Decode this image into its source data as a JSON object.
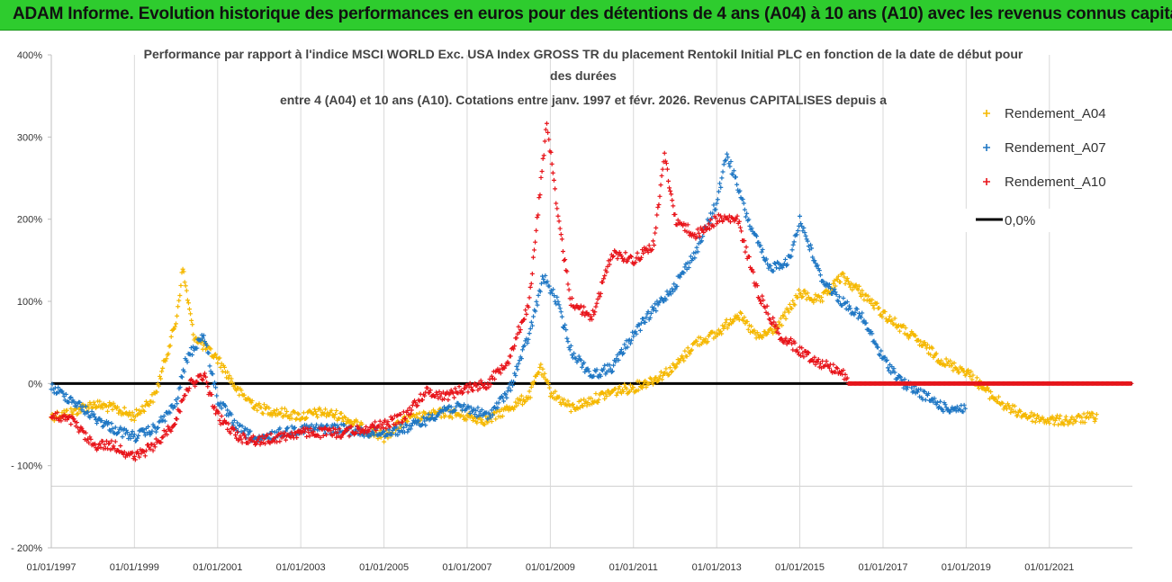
{
  "header": {
    "title": "ADAM Informe. Evolution historique des performances en euros pour des détentions de 4 ans (A04) à 10 ans (A10) avec les revenus connus capitalisés"
  },
  "chart_data": {
    "type": "scatter",
    "title_lines": [
      "Performance par rapport à l'indice MSCI WORLD Exc. USA Index GROSS TR  du placement Rentokil Initial PLC en fonction de la date de début pour",
      "des durées",
      "entre 4 (A04) et 10 ans (A10). Cotations entre janv. 1997 et févr. 2026. Revenus CAPITALISES depuis a"
    ],
    "xlabel": "",
    "ylabel": "",
    "x_tick_labels": [
      "01/01/1997",
      "01/01/1999",
      "01/01/2001",
      "01/01/2003",
      "01/01/2005",
      "01/01/2007",
      "01/01/2009",
      "01/01/2011",
      "01/01/2013",
      "01/01/2015",
      "01/01/2017",
      "01/01/2019",
      "01/01/2021"
    ],
    "xlim": [
      "1997-01-01",
      "2022-12-31"
    ],
    "y_tick_labels": [
      "400%",
      "300%",
      "200%",
      "100%",
      "0%",
      "- 100%",
      "- 200%"
    ],
    "ylim": [
      -200,
      400
    ],
    "grid": "vertical",
    "legend_position": "top-right",
    "reference_line": {
      "name": "0,0%",
      "value": 0,
      "color": "#000000"
    },
    "series": [
      {
        "name": "Rendement_A04",
        "color": "#f5b800",
        "points": [
          [
            "1997-01-01",
            -40
          ],
          [
            "1997-07-01",
            -35
          ],
          [
            "1998-01-01",
            -25
          ],
          [
            "1998-07-01",
            -30
          ],
          [
            "1999-01-01",
            -40
          ],
          [
            "1999-07-01",
            -15
          ],
          [
            "1999-10-01",
            30
          ],
          [
            "2000-01-01",
            75
          ],
          [
            "2000-03-01",
            140
          ],
          [
            "2000-06-01",
            60
          ],
          [
            "2000-09-01",
            45
          ],
          [
            "2001-01-01",
            30
          ],
          [
            "2001-07-01",
            -10
          ],
          [
            "2002-01-01",
            -30
          ],
          [
            "2002-07-01",
            -35
          ],
          [
            "2003-01-01",
            -40
          ],
          [
            "2003-07-01",
            -35
          ],
          [
            "2004-01-01",
            -40
          ],
          [
            "2004-07-01",
            -55
          ],
          [
            "2005-01-01",
            -65
          ],
          [
            "2005-07-01",
            -45
          ],
          [
            "2006-01-01",
            -40
          ],
          [
            "2006-07-01",
            -35
          ],
          [
            "2007-01-01",
            -40
          ],
          [
            "2007-07-01",
            -45
          ],
          [
            "2008-01-01",
            -30
          ],
          [
            "2008-07-01",
            -15
          ],
          [
            "2008-10-01",
            20
          ],
          [
            "2009-01-01",
            -10
          ],
          [
            "2009-07-01",
            -30
          ],
          [
            "2010-01-01",
            -20
          ],
          [
            "2010-07-01",
            -10
          ],
          [
            "2011-01-01",
            -5
          ],
          [
            "2011-07-01",
            5
          ],
          [
            "2012-01-01",
            20
          ],
          [
            "2012-07-01",
            50
          ],
          [
            "2013-01-01",
            60
          ],
          [
            "2013-07-01",
            85
          ],
          [
            "2014-01-01",
            55
          ],
          [
            "2014-07-01",
            70
          ],
          [
            "2015-01-01",
            110
          ],
          [
            "2015-07-01",
            100
          ],
          [
            "2016-01-01",
            130
          ],
          [
            "2016-07-01",
            110
          ],
          [
            "2017-01-01",
            85
          ],
          [
            "2017-07-01",
            65
          ],
          [
            "2018-01-01",
            45
          ],
          [
            "2018-07-01",
            25
          ],
          [
            "2019-01-01",
            15
          ],
          [
            "2019-07-01",
            -10
          ],
          [
            "2020-01-01",
            -30
          ],
          [
            "2020-07-01",
            -40
          ],
          [
            "2021-01-01",
            -45
          ],
          [
            "2021-07-01",
            -45
          ],
          [
            "2022-03-01",
            -40
          ]
        ]
      },
      {
        "name": "Rendement_A07",
        "color": "#1f77c4",
        "points": [
          [
            "1997-01-01",
            -5
          ],
          [
            "1997-07-01",
            -20
          ],
          [
            "1998-01-01",
            -40
          ],
          [
            "1998-07-01",
            -55
          ],
          [
            "1999-01-01",
            -65
          ],
          [
            "1999-07-01",
            -55
          ],
          [
            "2000-01-01",
            -25
          ],
          [
            "2000-04-01",
            30
          ],
          [
            "2000-09-01",
            60
          ],
          [
            "2001-01-01",
            -20
          ],
          [
            "2001-07-01",
            -55
          ],
          [
            "2002-01-01",
            -70
          ],
          [
            "2002-07-01",
            -60
          ],
          [
            "2003-01-01",
            -55
          ],
          [
            "2003-07-01",
            -55
          ],
          [
            "2004-01-01",
            -55
          ],
          [
            "2004-07-01",
            -60
          ],
          [
            "2005-01-01",
            -60
          ],
          [
            "2005-07-01",
            -55
          ],
          [
            "2006-01-01",
            -45
          ],
          [
            "2006-07-01",
            -30
          ],
          [
            "2007-01-01",
            -30
          ],
          [
            "2007-07-01",
            -40
          ],
          [
            "2008-01-01",
            -10
          ],
          [
            "2008-07-01",
            60
          ],
          [
            "2008-11-01",
            130
          ],
          [
            "2009-03-01",
            100
          ],
          [
            "2009-07-01",
            40
          ],
          [
            "2010-01-01",
            10
          ],
          [
            "2010-07-01",
            20
          ],
          [
            "2011-01-01",
            60
          ],
          [
            "2011-07-01",
            90
          ],
          [
            "2012-01-01",
            120
          ],
          [
            "2012-07-01",
            160
          ],
          [
            "2013-01-01",
            220
          ],
          [
            "2013-04-01",
            280
          ],
          [
            "2013-10-01",
            200
          ],
          [
            "2014-04-01",
            140
          ],
          [
            "2014-10-01",
            150
          ],
          [
            "2015-01-01",
            200
          ],
          [
            "2015-07-01",
            130
          ],
          [
            "2016-01-01",
            100
          ],
          [
            "2016-07-01",
            80
          ],
          [
            "2017-01-01",
            30
          ],
          [
            "2017-07-01",
            0
          ],
          [
            "2018-01-01",
            -15
          ],
          [
            "2018-07-01",
            -30
          ],
          [
            "2019-01-01",
            -30
          ]
        ]
      },
      {
        "name": "Rendement_A10",
        "color": "#e8151b",
        "points": [
          [
            "1997-01-01",
            -40
          ],
          [
            "1997-07-01",
            -45
          ],
          [
            "1998-01-01",
            -75
          ],
          [
            "1998-07-01",
            -75
          ],
          [
            "1999-01-01",
            -90
          ],
          [
            "1999-07-01",
            -75
          ],
          [
            "2000-01-01",
            -45
          ],
          [
            "2000-04-01",
            -5
          ],
          [
            "2000-09-01",
            10
          ],
          [
            "2001-01-01",
            -40
          ],
          [
            "2001-07-01",
            -65
          ],
          [
            "2002-01-01",
            -70
          ],
          [
            "2002-07-01",
            -65
          ],
          [
            "2003-01-01",
            -60
          ],
          [
            "2003-07-01",
            -60
          ],
          [
            "2004-01-01",
            -60
          ],
          [
            "2004-07-01",
            -55
          ],
          [
            "2005-01-01",
            -50
          ],
          [
            "2005-07-01",
            -40
          ],
          [
            "2006-01-01",
            -10
          ],
          [
            "2006-07-01",
            -15
          ],
          [
            "2007-01-01",
            -5
          ],
          [
            "2007-07-01",
            0
          ],
          [
            "2008-01-01",
            30
          ],
          [
            "2008-07-01",
            100
          ],
          [
            "2008-12-01",
            320
          ],
          [
            "2009-03-01",
            210
          ],
          [
            "2009-07-01",
            100
          ],
          [
            "2010-01-01",
            80
          ],
          [
            "2010-07-01",
            160
          ],
          [
            "2011-01-01",
            150
          ],
          [
            "2011-07-01",
            170
          ],
          [
            "2011-10-01",
            280
          ],
          [
            "2012-01-01",
            200
          ],
          [
            "2012-07-01",
            180
          ],
          [
            "2013-01-01",
            200
          ],
          [
            "2013-07-01",
            200
          ],
          [
            "2014-01-01",
            110
          ],
          [
            "2014-07-01",
            60
          ],
          [
            "2015-01-01",
            40
          ],
          [
            "2015-07-01",
            25
          ],
          [
            "2016-01-01",
            15
          ],
          [
            "2016-03-01",
            0
          ],
          [
            "2022-12-31",
            0
          ]
        ]
      }
    ]
  }
}
